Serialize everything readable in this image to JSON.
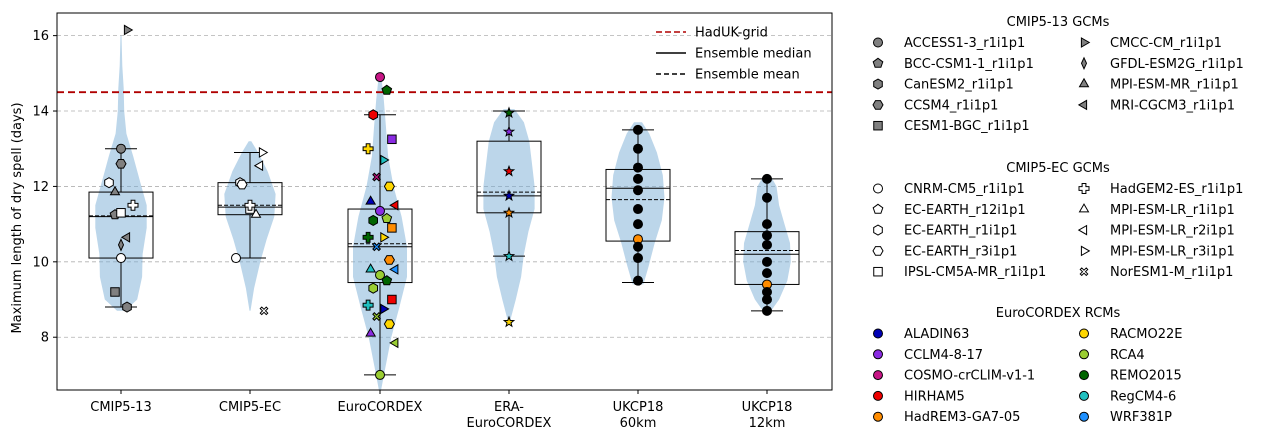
{
  "chart_data": {
    "type": "violin-box",
    "ylabel": "Maximum length of dry spell (days)",
    "ylim": [
      6.6,
      16.6
    ],
    "yticks": [
      8,
      10,
      12,
      14,
      16
    ],
    "grid": "horizontal dashed",
    "reference_line": {
      "name": "HadUK-grid",
      "value": 14.5,
      "color": "#b00000"
    },
    "legend_lines": [
      {
        "label": "HadUK-grid",
        "style": "red-dashed"
      },
      {
        "label": "Ensemble median",
        "style": "solid"
      },
      {
        "label": "Ensemble mean",
        "style": "dashed"
      }
    ],
    "groups": [
      {
        "label": "CMIP5-13",
        "lines": [
          "CMIP5-13"
        ],
        "box": {
          "q1": 10.1,
          "median": 11.2,
          "mean": 11.22,
          "q3": 11.85,
          "whisker_low": 8.8,
          "whisker_high": 13.0
        },
        "violin": [
          [
            8.7,
            0.15
          ],
          [
            9.0,
            0.6
          ],
          [
            9.6,
            0.78
          ],
          [
            10.2,
            0.8
          ],
          [
            10.9,
            0.95
          ],
          [
            11.5,
            0.95
          ],
          [
            12.1,
            0.72
          ],
          [
            12.8,
            0.45
          ],
          [
            13.4,
            0.2
          ],
          [
            14.0,
            0.12
          ],
          [
            14.6,
            0.1
          ],
          [
            15.2,
            0.05
          ],
          [
            16.0,
            0.02
          ]
        ]
      },
      {
        "label": "CMIP5-EC",
        "lines": [
          "CMIP5-EC"
        ],
        "box": {
          "q1": 11.25,
          "median": 11.45,
          "mean": 11.5,
          "q3": 12.1,
          "whisker_low": 10.1,
          "whisker_high": 12.9
        },
        "violin": [
          [
            8.7,
            0.02
          ],
          [
            9.3,
            0.15
          ],
          [
            10.0,
            0.38
          ],
          [
            10.6,
            0.62
          ],
          [
            11.2,
            0.9
          ],
          [
            11.8,
            0.95
          ],
          [
            12.4,
            0.65
          ],
          [
            12.9,
            0.3
          ],
          [
            13.2,
            0.05
          ]
        ]
      },
      {
        "label": "EuroCORDEX",
        "lines": [
          "EuroCORDEX"
        ],
        "box": {
          "q1": 9.45,
          "median": 10.4,
          "mean": 10.48,
          "q3": 11.4,
          "whisker_low": 7.0,
          "whisker_high": 13.9
        },
        "violin": [
          [
            6.6,
            0.04
          ],
          [
            7.2,
            0.2
          ],
          [
            8.0,
            0.42
          ],
          [
            8.8,
            0.72
          ],
          [
            9.6,
            1.0
          ],
          [
            10.4,
            1.0
          ],
          [
            11.2,
            0.8
          ],
          [
            12.0,
            0.5
          ],
          [
            12.8,
            0.3
          ],
          [
            13.6,
            0.22
          ],
          [
            14.3,
            0.14
          ],
          [
            14.9,
            0.05
          ]
        ]
      },
      {
        "label": "ERA-EuroCORDEX",
        "lines": [
          "ERA-",
          "EuroCORDEX"
        ],
        "box": {
          "q1": 11.3,
          "median": 11.75,
          "mean": 11.85,
          "q3": 13.2,
          "whisker_low": 10.15,
          "whisker_high": 14.0
        },
        "violin": [
          [
            8.4,
            0.03
          ],
          [
            9.0,
            0.25
          ],
          [
            9.6,
            0.45
          ],
          [
            10.2,
            0.55
          ],
          [
            10.8,
            0.72
          ],
          [
            11.4,
            0.95
          ],
          [
            12.0,
            0.95
          ],
          [
            12.6,
            0.85
          ],
          [
            13.2,
            0.75
          ],
          [
            13.7,
            0.55
          ],
          [
            14.05,
            0.2
          ]
        ]
      },
      {
        "label": "UKCP18 60km",
        "lines": [
          "UKCP18",
          "60km"
        ],
        "box": {
          "q1": 10.55,
          "median": 11.95,
          "mean": 11.65,
          "q3": 12.45,
          "whisker_low": 9.45,
          "whisker_high": 13.5
        },
        "violin": [
          [
            9.4,
            0.2
          ],
          [
            9.9,
            0.4
          ],
          [
            10.5,
            0.62
          ],
          [
            11.1,
            0.88
          ],
          [
            11.7,
            0.98
          ],
          [
            12.3,
            0.92
          ],
          [
            12.9,
            0.7
          ],
          [
            13.4,
            0.42
          ],
          [
            13.7,
            0.15
          ]
        ]
      },
      {
        "label": "UKCP18 12km",
        "lines": [
          "UKCP18",
          "12km"
        ],
        "box": {
          "q1": 9.4,
          "median": 10.2,
          "mean": 10.3,
          "q3": 10.8,
          "whisker_low": 8.7,
          "whisker_high": 12.2
        },
        "violin": [
          [
            8.6,
            0.05
          ],
          [
            9.0,
            0.45
          ],
          [
            9.5,
            0.75
          ],
          [
            10.0,
            0.88
          ],
          [
            10.5,
            0.85
          ],
          [
            11.0,
            0.65
          ],
          [
            11.5,
            0.45
          ],
          [
            12.0,
            0.35
          ],
          [
            12.3,
            0.12
          ]
        ]
      }
    ],
    "points": [
      {
        "group": 0,
        "model": "ACCESS1-3_r1i1p1",
        "value": 13.0
      },
      {
        "group": 0,
        "model": "BCC-CSM1-1_r1i1p1",
        "value": 11.25
      },
      {
        "group": 0,
        "model": "CanESM2_r1i1p1",
        "value": 8.8
      },
      {
        "group": 0,
        "model": "CCSM4_r1i1p1",
        "value": 12.6
      },
      {
        "group": 0,
        "model": "CESM1-BGC_r1i1p1",
        "value": 9.2
      },
      {
        "group": 0,
        "model": "CMCC-CM_r1i1p1",
        "value": 16.15
      },
      {
        "group": 0,
        "model": "GFDL-ESM2G_r1i1p1",
        "value": 10.45
      },
      {
        "group": 0,
        "model": "MPI-ESM-MR_r1i1p1",
        "value": 11.85
      },
      {
        "group": 0,
        "model": "MRI-CGCM3_r1i1p1",
        "value": 10.65
      },
      {
        "group": 0,
        "model": "CNRM-CM5_r1i1p1",
        "value": 10.1
      },
      {
        "group": 0,
        "model": "EC-EARTH_r1i1p1",
        "value": 12.1
      },
      {
        "group": 0,
        "model": "HadGEM2-ES_r1i1p1",
        "value": 11.5
      },
      {
        "group": 0,
        "model": "IPSL-CM5A-MR_r1i1p1",
        "value": 11.3
      },
      {
        "group": 1,
        "model": "CNRM-CM5_r1i1p1",
        "value": 10.1
      },
      {
        "group": 1,
        "model": "EC-EARTH_r12i1p1",
        "value": 11.45
      },
      {
        "group": 1,
        "model": "EC-EARTH_r1i1p1",
        "value": 12.1
      },
      {
        "group": 1,
        "model": "EC-EARTH_r3i1p1",
        "value": 12.05
      },
      {
        "group": 1,
        "model": "IPSL-CM5A-MR_r1i1p1",
        "value": 11.4
      },
      {
        "group": 1,
        "model": "HadGEM2-ES_r1i1p1",
        "value": 11.5
      },
      {
        "group": 1,
        "model": "MPI-ESM-LR_r1i1p1",
        "value": 11.25
      },
      {
        "group": 1,
        "model": "MPI-ESM-LR_r2i1p1",
        "value": 12.55
      },
      {
        "group": 1,
        "model": "MPI-ESM-LR_r3i1p1",
        "value": 12.9
      },
      {
        "group": 1,
        "model": "NorESM1-M_r1i1p1",
        "value": 8.7
      },
      {
        "group": 2,
        "model": "COSMO-crCLIM-v1-1",
        "value": 14.9
      },
      {
        "group": 2,
        "model": "REMO2015",
        "value": 14.55
      },
      {
        "group": 2,
        "model": "HIRHAM5",
        "value": 13.9
      },
      {
        "group": 2,
        "model": "CCLM4-8-17",
        "value": 13.25
      },
      {
        "group": 2,
        "model": "RACMO22E",
        "value": 13.0
      },
      {
        "group": 2,
        "model": "RegCM4-6",
        "value": 12.7
      },
      {
        "group": 2,
        "model": "COSMO-crCLIM-v1-1",
        "value": 12.25
      },
      {
        "group": 2,
        "model": "RACMO22E",
        "value": 12.0
      },
      {
        "group": 2,
        "model": "ALADIN63",
        "value": 11.6
      },
      {
        "group": 2,
        "model": "HIRHAM5",
        "value": 11.5
      },
      {
        "group": 2,
        "model": "CCLM4-8-17",
        "value": 11.35
      },
      {
        "group": 2,
        "model": "RCA4",
        "value": 11.15
      },
      {
        "group": 2,
        "model": "REMO2015",
        "value": 11.1
      },
      {
        "group": 2,
        "model": "HadREM3-GA7-05",
        "value": 10.9
      },
      {
        "group": 2,
        "model": "REMO2015",
        "value": 10.65
      },
      {
        "group": 2,
        "model": "RACMO22E",
        "value": 10.65
      },
      {
        "group": 2,
        "model": "WRF381P",
        "value": 10.4
      },
      {
        "group": 2,
        "model": "HadREM3-GA7-05",
        "value": 10.05
      },
      {
        "group": 2,
        "model": "RegCM4-6",
        "value": 9.8
      },
      {
        "group": 2,
        "model": "WRF381P",
        "value": 9.8
      },
      {
        "group": 2,
        "model": "RCA4",
        "value": 9.65
      },
      {
        "group": 2,
        "model": "REMO2015",
        "value": 9.5
      },
      {
        "group": 2,
        "model": "RCA4",
        "value": 9.3
      },
      {
        "group": 2,
        "model": "HIRHAM5",
        "value": 9.0
      },
      {
        "group": 2,
        "model": "RegCM4-6",
        "value": 8.85
      },
      {
        "group": 2,
        "model": "ALADIN63",
        "value": 8.75
      },
      {
        "group": 2,
        "model": "RCA4",
        "value": 8.55
      },
      {
        "group": 2,
        "model": "RACMO22E",
        "value": 8.35
      },
      {
        "group": 2,
        "model": "CCLM4-8-17",
        "value": 8.1
      },
      {
        "group": 2,
        "model": "RCA4",
        "value": 7.85
      },
      {
        "group": 2,
        "model": "RCA4",
        "value": 7.0
      },
      {
        "group": 3,
        "model": "REMO2015",
        "value": 13.95
      },
      {
        "group": 3,
        "model": "CCLM4-8-17",
        "value": 13.45
      },
      {
        "group": 3,
        "model": "HIRHAM5",
        "value": 12.4
      },
      {
        "group": 3,
        "model": "ALADIN63",
        "value": 11.75
      },
      {
        "group": 3,
        "model": "HadREM3-GA7-05",
        "value": 11.3
      },
      {
        "group": 3,
        "model": "RegCM4-6",
        "value": 10.15
      },
      {
        "group": 3,
        "model": "RACMO22E",
        "value": 8.4
      },
      {
        "group": 4,
        "value": 13.5
      },
      {
        "group": 4,
        "value": 13.0
      },
      {
        "group": 4,
        "value": 12.5
      },
      {
        "group": 4,
        "value": 12.2
      },
      {
        "group": 4,
        "value": 11.9
      },
      {
        "group": 4,
        "value": 11.4
      },
      {
        "group": 4,
        "value": 11.0
      },
      {
        "group": 4,
        "value": 10.6
      },
      {
        "group": 4,
        "value": 10.4
      },
      {
        "group": 4,
        "value": 10.1
      },
      {
        "group": 4,
        "value": 9.5
      },
      {
        "group": 5,
        "value": 12.2
      },
      {
        "group": 5,
        "value": 11.7
      },
      {
        "group": 5,
        "value": 11.0
      },
      {
        "group": 5,
        "value": 10.7
      },
      {
        "group": 5,
        "value": 10.45
      },
      {
        "group": 5,
        "value": 10.0
      },
      {
        "group": 5,
        "value": 9.7
      },
      {
        "group": 5,
        "value": 9.4
      },
      {
        "group": 5,
        "value": 9.2
      },
      {
        "group": 5,
        "value": 9.0
      },
      {
        "group": 5,
        "value": 8.7
      }
    ],
    "legend": {
      "cmip5_13": {
        "title": "CMIP5-13 GCMs",
        "items": [
          {
            "label": "ACCESS1-3_r1i1p1",
            "marker": "circle"
          },
          {
            "label": "BCC-CSM1-1_r1i1p1",
            "marker": "pentagon"
          },
          {
            "label": "CanESM2_r1i1p1",
            "marker": "hexagon"
          },
          {
            "label": "CCSM4_r1i1p1",
            "marker": "hexagon2"
          },
          {
            "label": "CESM1-BGC_r1i1p1",
            "marker": "square"
          },
          {
            "label": "CMCC-CM_r1i1p1",
            "marker": "tri-right"
          },
          {
            "label": "GFDL-ESM2G_r1i1p1",
            "marker": "thin-diamond"
          },
          {
            "label": "MPI-ESM-MR_r1i1p1",
            "marker": "tri-up"
          },
          {
            "label": "MRI-CGCM3_r1i1p1",
            "marker": "tri-left"
          }
        ]
      },
      "cmip5_ec": {
        "title": "CMIP5-EC GCMs",
        "items": [
          {
            "label": "CNRM-CM5_r1i1p1",
            "marker": "circle"
          },
          {
            "label": "EC-EARTH_r12i1p1",
            "marker": "pentagon"
          },
          {
            "label": "EC-EARTH_r1i1p1",
            "marker": "hexagon"
          },
          {
            "label": "EC-EARTH_r3i1p1",
            "marker": "hexagon2"
          },
          {
            "label": "IPSL-CM5A-MR_r1i1p1",
            "marker": "square"
          },
          {
            "label": "HadGEM2-ES_r1i1p1",
            "marker": "plus"
          },
          {
            "label": "MPI-ESM-LR_r1i1p1",
            "marker": "tri-up"
          },
          {
            "label": "MPI-ESM-LR_r2i1p1",
            "marker": "tri-left"
          },
          {
            "label": "MPI-ESM-LR_r3i1p1",
            "marker": "tri-right"
          },
          {
            "label": "NorESM1-M_r1i1p1",
            "marker": "x"
          }
        ]
      },
      "rcms": {
        "title": "EuroCORDEX RCMs",
        "items": [
          {
            "label": "ALADIN63",
            "color": "#0000b4"
          },
          {
            "label": "CCLM4-8-17",
            "color": "#8a2be2"
          },
          {
            "label": "COSMO-crCLIM-v1-1",
            "color": "#c71585"
          },
          {
            "label": "HIRHAM5",
            "color": "#ee0000"
          },
          {
            "label": "HadREM3-GA7-05",
            "color": "#ff8c00"
          },
          {
            "label": "RACMO22E",
            "color": "#ffd700"
          },
          {
            "label": "RCA4",
            "color": "#9acd32"
          },
          {
            "label": "REMO2015",
            "color": "#006400"
          },
          {
            "label": "RegCM4-6",
            "color": "#20c0c0"
          },
          {
            "label": "WRF381P",
            "color": "#1e90ff"
          }
        ]
      }
    }
  }
}
